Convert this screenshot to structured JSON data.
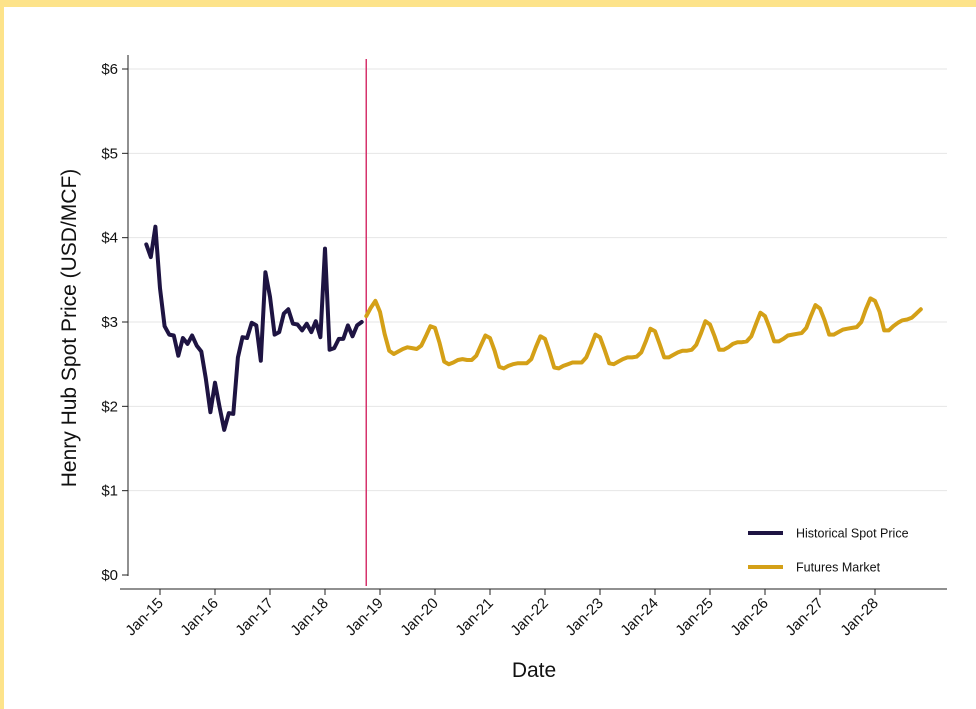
{
  "chart_data": {
    "type": "line",
    "title": "",
    "xlabel": "Date",
    "ylabel": "Henry Hub Spot Price (USD/MCF)",
    "ylim": [
      0,
      6
    ],
    "xlim": [
      "2014-09",
      "2028-12"
    ],
    "y_ticks": [
      {
        "value": 0,
        "label": "$0"
      },
      {
        "value": 1,
        "label": "$1"
      },
      {
        "value": 2,
        "label": "$2"
      },
      {
        "value": 3,
        "label": "$3"
      },
      {
        "value": 4,
        "label": "$4"
      },
      {
        "value": 5,
        "label": "$5"
      },
      {
        "value": 6,
        "label": "$6"
      }
    ],
    "x_ticks": [
      {
        "value": "2015-01",
        "label": "Jan-15"
      },
      {
        "value": "2016-01",
        "label": "Jan-16"
      },
      {
        "value": "2017-01",
        "label": "Jan-17"
      },
      {
        "value": "2018-01",
        "label": "Jan-18"
      },
      {
        "value": "2019-01",
        "label": "Jan-19"
      },
      {
        "value": "2020-01",
        "label": "Jan-20"
      },
      {
        "value": "2021-01",
        "label": "Jan-21"
      },
      {
        "value": "2022-01",
        "label": "Jan-22"
      },
      {
        "value": "2023-01",
        "label": "Jan-23"
      },
      {
        "value": "2024-01",
        "label": "Jan-24"
      },
      {
        "value": "2025-01",
        "label": "Jan-25"
      },
      {
        "value": "2026-01",
        "label": "Jan-26"
      },
      {
        "value": "2027-01",
        "label": "Jan-27"
      },
      {
        "value": "2028-01",
        "label": "Jan-28"
      }
    ],
    "grid": true,
    "legend_position": "bottom-right",
    "vline": {
      "x": "2018-10",
      "color": "#d6336c"
    },
    "series": [
      {
        "name": "Historical Spot Price",
        "color": "#1e1442",
        "x": [
          "2014-10",
          "2014-11",
          "2014-12",
          "2015-01",
          "2015-02",
          "2015-03",
          "2015-04",
          "2015-05",
          "2015-06",
          "2015-07",
          "2015-08",
          "2015-09",
          "2015-10",
          "2015-11",
          "2015-12",
          "2016-01",
          "2016-02",
          "2016-03",
          "2016-04",
          "2016-05",
          "2016-06",
          "2016-07",
          "2016-08",
          "2016-09",
          "2016-10",
          "2016-11",
          "2016-12",
          "2017-01",
          "2017-02",
          "2017-03",
          "2017-04",
          "2017-05",
          "2017-06",
          "2017-07",
          "2017-08",
          "2017-09",
          "2017-10",
          "2017-11",
          "2017-12",
          "2018-01",
          "2018-02",
          "2018-03",
          "2018-04",
          "2018-05",
          "2018-06",
          "2018-07",
          "2018-08",
          "2018-09"
        ],
        "y": [
          3.92,
          3.77,
          4.13,
          3.4,
          2.95,
          2.85,
          2.84,
          2.6,
          2.81,
          2.74,
          2.84,
          2.72,
          2.65,
          2.33,
          1.93,
          2.28,
          1.99,
          1.72,
          1.92,
          1.91,
          2.58,
          2.82,
          2.81,
          2.99,
          2.96,
          2.54,
          3.59,
          3.3,
          2.85,
          2.88,
          3.1,
          3.15,
          2.98,
          2.97,
          2.9,
          2.98,
          2.88,
          3.01,
          2.82,
          3.87,
          2.67,
          2.69,
          2.8,
          2.8,
          2.96,
          2.83,
          2.96,
          3.0
        ]
      },
      {
        "name": "Futures Market",
        "color": "#d4a017",
        "x": [
          "2018-10",
          "2018-11",
          "2018-12",
          "2019-01",
          "2019-02",
          "2019-03",
          "2019-04",
          "2019-05",
          "2019-06",
          "2019-07",
          "2019-08",
          "2019-09",
          "2019-10",
          "2019-11",
          "2019-12",
          "2020-01",
          "2020-02",
          "2020-03",
          "2020-04",
          "2020-05",
          "2020-06",
          "2020-07",
          "2020-08",
          "2020-09",
          "2020-10",
          "2020-11",
          "2020-12",
          "2021-01",
          "2021-02",
          "2021-03",
          "2021-04",
          "2021-05",
          "2021-06",
          "2021-07",
          "2021-08",
          "2021-09",
          "2021-10",
          "2021-11",
          "2021-12",
          "2022-01",
          "2022-02",
          "2022-03",
          "2022-04",
          "2022-05",
          "2022-06",
          "2022-07",
          "2022-08",
          "2022-09",
          "2022-10",
          "2022-11",
          "2022-12",
          "2023-01",
          "2023-02",
          "2023-03",
          "2023-04",
          "2023-05",
          "2023-06",
          "2023-07",
          "2023-08",
          "2023-09",
          "2023-10",
          "2023-11",
          "2023-12",
          "2024-01",
          "2024-02",
          "2024-03",
          "2024-04",
          "2024-05",
          "2024-06",
          "2024-07",
          "2024-08",
          "2024-09",
          "2024-10",
          "2024-11",
          "2024-12",
          "2025-01",
          "2025-02",
          "2025-03",
          "2025-04",
          "2025-05",
          "2025-06",
          "2025-07",
          "2025-08",
          "2025-09",
          "2025-10",
          "2025-11",
          "2025-12",
          "2026-01",
          "2026-02",
          "2026-03",
          "2026-04",
          "2026-05",
          "2026-06",
          "2026-07",
          "2026-08",
          "2026-09",
          "2026-10",
          "2026-11",
          "2026-12",
          "2027-01",
          "2027-02",
          "2027-03",
          "2027-04",
          "2027-05",
          "2027-06",
          "2027-07",
          "2027-08",
          "2027-09",
          "2027-10",
          "2027-11",
          "2027-12",
          "2028-01",
          "2028-02",
          "2028-03",
          "2028-04",
          "2028-05",
          "2028-06",
          "2028-07",
          "2028-08",
          "2028-09",
          "2028-10",
          "2028-11"
        ],
        "y": [
          3.07,
          3.17,
          3.25,
          3.12,
          2.86,
          2.66,
          2.62,
          2.65,
          2.68,
          2.7,
          2.69,
          2.68,
          2.72,
          2.83,
          2.95,
          2.93,
          2.75,
          2.53,
          2.5,
          2.52,
          2.55,
          2.56,
          2.55,
          2.55,
          2.6,
          2.72,
          2.84,
          2.81,
          2.66,
          2.47,
          2.45,
          2.48,
          2.5,
          2.51,
          2.51,
          2.51,
          2.56,
          2.7,
          2.83,
          2.8,
          2.64,
          2.46,
          2.45,
          2.48,
          2.5,
          2.52,
          2.52,
          2.52,
          2.58,
          2.71,
          2.85,
          2.82,
          2.67,
          2.51,
          2.5,
          2.53,
          2.56,
          2.58,
          2.58,
          2.59,
          2.64,
          2.77,
          2.92,
          2.89,
          2.74,
          2.58,
          2.58,
          2.61,
          2.64,
          2.66,
          2.66,
          2.67,
          2.73,
          2.86,
          3.01,
          2.97,
          2.83,
          2.67,
          2.67,
          2.7,
          2.74,
          2.76,
          2.76,
          2.77,
          2.83,
          2.97,
          3.11,
          3.07,
          2.93,
          2.77,
          2.77,
          2.8,
          2.84,
          2.85,
          2.86,
          2.87,
          2.93,
          3.07,
          3.2,
          3.16,
          3.02,
          2.85,
          2.85,
          2.88,
          2.91,
          2.92,
          2.93,
          2.94,
          3.0,
          3.15,
          3.28,
          3.25,
          3.12,
          2.9,
          2.9,
          2.95,
          2.99,
          3.02,
          3.03,
          3.05,
          3.1,
          3.15
        ]
      }
    ]
  }
}
